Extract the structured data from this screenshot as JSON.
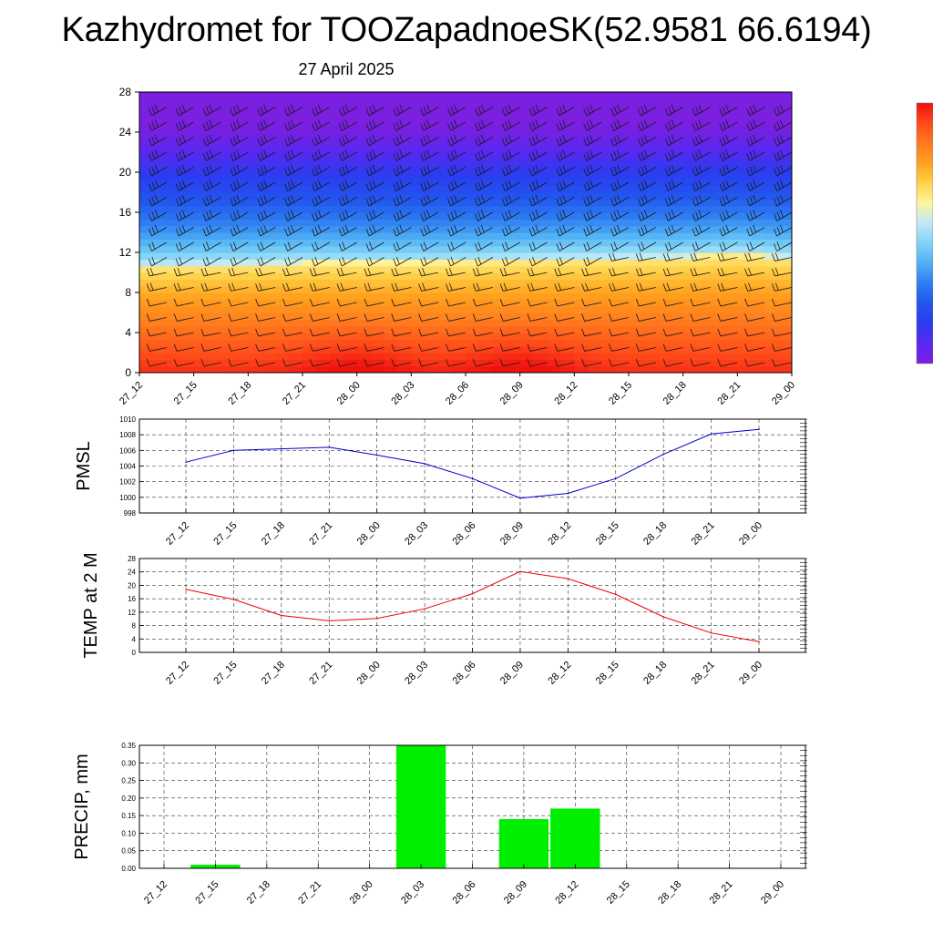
{
  "header": {
    "title": "Kazhydromet for TOOZapadnoeSK(52.9581 66.6194)",
    "subtitle": "27 April 2025"
  },
  "colors": {
    "pmsl_line": "#0000cc",
    "temp_line": "#ee0000",
    "precip_bar": "#00ee00",
    "colorbar": [
      "#7b1fe0",
      "#5a28f0",
      "#2b3cf0",
      "#2255ee",
      "#2e7df2",
      "#4fb0f5",
      "#7fd3f7",
      "#bfe9f7",
      "#fff4a0",
      "#ffd24a",
      "#ffa21e",
      "#ff7a1e",
      "#ff4a1a",
      "#f01010"
    ]
  },
  "chart_data": [
    {
      "type": "heatmap",
      "title": "",
      "xlabel": "",
      "ylabel": "",
      "x_ticks": [
        "27_12",
        "27_15",
        "27_18",
        "27_21",
        "28_00",
        "28_03",
        "28_06",
        "28_09",
        "28_12",
        "28_15",
        "28_18",
        "28_21",
        "29_00"
      ],
      "y_ticks": [
        0,
        4,
        8,
        12,
        16,
        20,
        24,
        28
      ],
      "ylim": [
        0,
        28
      ],
      "freezing_level": [
        10.7,
        10.8,
        10.9,
        11.0,
        11.0,
        11.0,
        11.1,
        11.3,
        11.4,
        11.5,
        11.6,
        11.9,
        11.5
      ],
      "warm_core_times": [
        "28_00",
        "28_09"
      ],
      "wind_barbs": true
    },
    {
      "type": "line",
      "title": "",
      "xlabel": "",
      "ylabel": "PMSL",
      "categories": [
        "27_12",
        "27_15",
        "27_18",
        "27_21",
        "28_00",
        "28_03",
        "28_06",
        "28_09",
        "28_12",
        "28_15",
        "28_18",
        "28_21",
        "29_00"
      ],
      "values": [
        1004.5,
        1006.0,
        1006.2,
        1006.4,
        1005.4,
        1004.3,
        1002.4,
        999.9,
        1000.5,
        1002.4,
        1005.5,
        1008.1,
        1008.7
      ],
      "ylim": [
        998,
        1010
      ],
      "y_ticks": [
        998,
        1000,
        1002,
        1004,
        1006,
        1008,
        1010
      ],
      "grid": true
    },
    {
      "type": "line",
      "title": "",
      "xlabel": "",
      "ylabel": "TEMP at 2 M",
      "categories": [
        "27_12",
        "27_15",
        "27_18",
        "27_21",
        "28_00",
        "28_03",
        "28_06",
        "28_09",
        "28_12",
        "28_15",
        "28_18",
        "28_21",
        "29_00"
      ],
      "values": [
        18.8,
        15.8,
        11.0,
        9.4,
        10.1,
        13.0,
        17.5,
        24.1,
        22.0,
        17.3,
        10.6,
        5.8,
        3.2
      ],
      "ylim": [
        0,
        28
      ],
      "y_ticks": [
        0,
        4,
        8,
        12,
        16,
        20,
        24,
        28
      ],
      "grid": true
    },
    {
      "type": "bar",
      "title": "",
      "xlabel": "",
      "ylabel": "PRECIP, mm",
      "categories": [
        "27_12",
        "27_15",
        "27_18",
        "27_21",
        "28_00",
        "28_03",
        "28_06",
        "28_09",
        "28_12",
        "28_15",
        "28_18",
        "28_21",
        "29_00"
      ],
      "values": [
        0.0,
        0.01,
        0.0,
        0.0,
        0.0,
        0.35,
        0.0,
        0.14,
        0.17,
        0.0,
        0.0,
        0.0,
        0.0
      ],
      "ylim": [
        0,
        0.35
      ],
      "y_ticks": [
        "0.00",
        "0.05",
        "0.10",
        "0.15",
        "0.20",
        "0.25",
        "0.30",
        "0.35"
      ],
      "grid": true
    }
  ]
}
